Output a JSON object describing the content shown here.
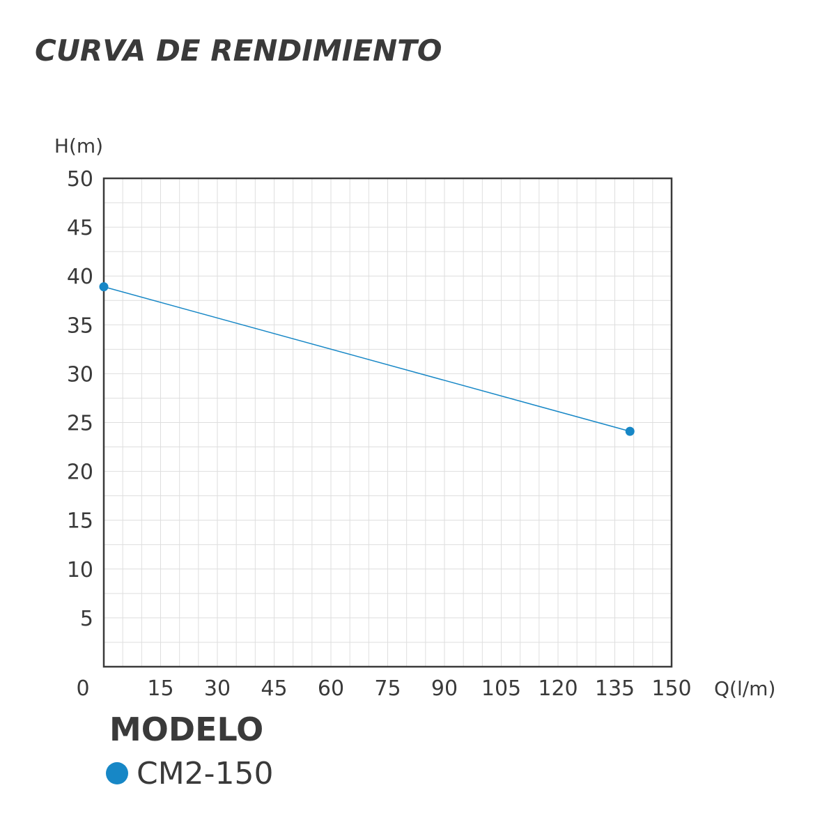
{
  "title": "CURVA DE RENDIMIENTO",
  "chart_data": {
    "type": "line",
    "xlabel": "Q(l/m)",
    "ylabel": "H(m)",
    "xlim": [
      0,
      150
    ],
    "ylim": [
      0,
      50
    ],
    "x_ticks": [
      0,
      15,
      30,
      45,
      60,
      75,
      90,
      105,
      120,
      135,
      150
    ],
    "y_ticks": [
      5,
      10,
      15,
      20,
      25,
      30,
      35,
      40,
      45,
      50
    ],
    "grid": true,
    "series": [
      {
        "name": "CM2-150",
        "color": "#1787c6",
        "x": [
          0,
          139
        ],
        "y": [
          38.9,
          24.1
        ]
      }
    ],
    "legend_placement": "bottom-left"
  },
  "legend": {
    "title": "MODELO",
    "items": [
      {
        "label": "CM2-150",
        "color": "#1787c6"
      }
    ]
  }
}
